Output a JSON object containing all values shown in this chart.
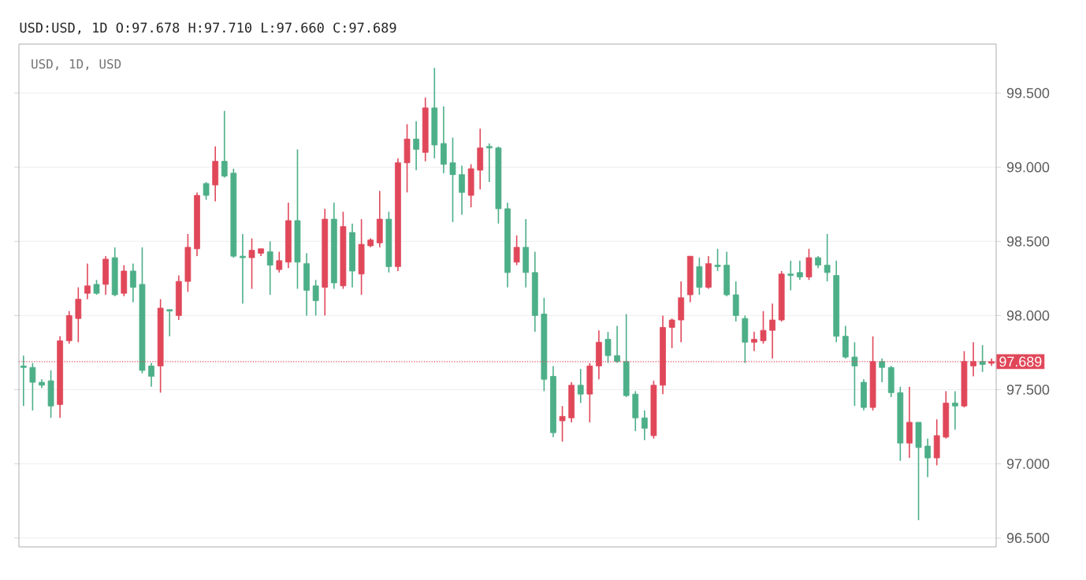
{
  "chart_data": {
    "type": "candlestick",
    "title": "USD:USD, 1D O:97.678 H:97.710 L:97.660 C:97.689",
    "subtitle": "USD, 1D, USD",
    "categories": [
      null,
      null,
      null,
      null,
      null,
      null,
      null,
      null,
      null,
      null,
      null,
      null,
      null,
      null,
      null,
      null,
      null,
      null,
      null,
      null,
      null,
      null,
      null,
      null,
      null,
      null,
      null,
      null,
      null,
      null,
      null,
      null,
      null,
      null,
      null,
      null,
      null,
      null,
      null,
      null,
      null,
      null,
      null,
      null,
      null,
      null,
      null,
      null,
      null,
      null,
      null,
      null,
      null,
      null,
      null,
      null,
      null,
      null,
      null,
      null,
      null,
      null,
      null,
      null,
      null,
      null,
      null,
      null,
      null,
      null,
      null,
      null,
      null,
      null,
      null,
      null,
      null,
      null,
      null,
      null,
      null,
      null,
      null,
      null,
      null,
      null,
      null,
      null,
      null,
      null,
      null,
      null,
      null,
      null,
      null,
      null,
      null,
      null,
      null,
      null,
      null,
      null,
      null,
      null,
      null,
      null,
      null
    ],
    "ohlc": [
      [
        97.66,
        97.73,
        97.39,
        97.65
      ],
      [
        97.65,
        97.68,
        97.36,
        97.55
      ],
      [
        97.55,
        97.57,
        97.51,
        97.53
      ],
      [
        97.56,
        97.63,
        97.31,
        97.39
      ],
      [
        97.4,
        97.86,
        97.31,
        97.83
      ],
      [
        97.83,
        98.03,
        97.81,
        98.0
      ],
      [
        97.98,
        98.19,
        97.82,
        98.11
      ],
      [
        98.15,
        98.35,
        98.11,
        98.2
      ],
      [
        98.21,
        98.24,
        98.14,
        98.15
      ],
      [
        98.21,
        98.4,
        98.14,
        98.38
      ],
      [
        98.39,
        98.46,
        98.13,
        98.14
      ],
      [
        98.15,
        98.34,
        98.13,
        98.3
      ],
      [
        98.3,
        98.35,
        98.09,
        98.19
      ],
      [
        98.21,
        98.46,
        97.61,
        97.63
      ],
      [
        97.66,
        97.68,
        97.52,
        97.59
      ],
      [
        97.66,
        98.11,
        97.48,
        98.05
      ],
      [
        98.04,
        98.04,
        97.86,
        98.03
      ],
      [
        98.0,
        98.27,
        97.97,
        98.23
      ],
      [
        98.23,
        98.55,
        98.16,
        98.46
      ],
      [
        98.45,
        98.83,
        98.4,
        98.81
      ],
      [
        98.89,
        98.9,
        98.78,
        98.81
      ],
      [
        98.88,
        99.14,
        98.77,
        99.04
      ],
      [
        99.04,
        99.38,
        98.93,
        98.94
      ],
      [
        98.96,
        98.99,
        98.39,
        98.4
      ],
      [
        98.4,
        98.55,
        98.08,
        98.39
      ],
      [
        98.39,
        98.52,
        98.18,
        98.44
      ],
      [
        98.42,
        98.45,
        98.4,
        98.45
      ],
      [
        98.43,
        98.5,
        98.14,
        98.34
      ],
      [
        98.31,
        98.43,
        98.29,
        98.37
      ],
      [
        98.36,
        98.76,
        98.32,
        98.64
      ],
      [
        98.64,
        99.12,
        98.18,
        98.36
      ],
      [
        98.35,
        98.42,
        98.0,
        98.17
      ],
      [
        98.2,
        98.24,
        98.0,
        98.1
      ],
      [
        98.19,
        98.72,
        98.0,
        98.65
      ],
      [
        98.65,
        98.76,
        98.18,
        98.22
      ],
      [
        98.2,
        98.7,
        98.18,
        98.6
      ],
      [
        98.56,
        98.62,
        98.19,
        98.3
      ],
      [
        98.28,
        98.65,
        98.14,
        98.48
      ],
      [
        98.47,
        98.52,
        98.46,
        98.51
      ],
      [
        98.49,
        98.84,
        98.46,
        98.65
      ],
      [
        98.65,
        98.7,
        98.29,
        98.33
      ],
      [
        98.33,
        99.06,
        98.3,
        99.03
      ],
      [
        99.03,
        99.29,
        98.83,
        99.19
      ],
      [
        99.19,
        99.31,
        98.98,
        99.12
      ],
      [
        99.1,
        99.47,
        99.04,
        99.4
      ],
      [
        99.4,
        99.67,
        99.06,
        99.15
      ],
      [
        99.16,
        99.41,
        98.96,
        99.02
      ],
      [
        99.03,
        99.2,
        98.63,
        98.95
      ],
      [
        98.95,
        99.01,
        98.68,
        98.83
      ],
      [
        98.81,
        99.02,
        98.73,
        98.99
      ],
      [
        98.98,
        99.26,
        98.85,
        99.13
      ],
      [
        99.14,
        99.16,
        98.9,
        99.13
      ],
      [
        99.13,
        99.14,
        98.62,
        98.72
      ],
      [
        98.72,
        98.76,
        98.19,
        98.29
      ],
      [
        98.36,
        98.54,
        98.34,
        98.46
      ],
      [
        98.46,
        98.65,
        98.19,
        98.29
      ],
      [
        98.29,
        98.43,
        97.89,
        98.0
      ],
      [
        98.01,
        98.12,
        97.49,
        97.57
      ],
      [
        97.59,
        97.66,
        97.18,
        97.21
      ],
      [
        97.29,
        97.39,
        97.15,
        97.32
      ],
      [
        97.31,
        97.55,
        97.28,
        97.53
      ],
      [
        97.53,
        97.64,
        97.41,
        97.47
      ],
      [
        97.47,
        97.68,
        97.28,
        97.66
      ],
      [
        97.66,
        97.9,
        97.57,
        97.82
      ],
      [
        97.84,
        97.89,
        97.68,
        97.73
      ],
      [
        97.73,
        97.93,
        97.68,
        97.69
      ],
      [
        97.69,
        98.01,
        97.45,
        97.46
      ],
      [
        97.47,
        97.49,
        97.22,
        97.31
      ],
      [
        97.31,
        97.36,
        97.16,
        97.24
      ],
      [
        97.19,
        97.56,
        97.17,
        97.53
      ],
      [
        97.53,
        98.0,
        97.47,
        97.92
      ],
      [
        97.92,
        97.98,
        97.78,
        97.97
      ],
      [
        97.97,
        98.23,
        97.82,
        98.12
      ],
      [
        98.14,
        98.4,
        98.09,
        98.4
      ],
      [
        98.33,
        98.39,
        98.14,
        98.19
      ],
      [
        98.19,
        98.4,
        98.18,
        98.35
      ],
      [
        98.34,
        98.45,
        98.3,
        98.33
      ],
      [
        98.34,
        98.43,
        98.13,
        98.14
      ],
      [
        98.14,
        98.23,
        97.96,
        98.0
      ],
      [
        97.98,
        98.0,
        97.68,
        97.82
      ],
      [
        97.82,
        97.89,
        97.76,
        97.84
      ],
      [
        97.83,
        98.03,
        97.81,
        97.9
      ],
      [
        97.9,
        98.08,
        97.71,
        97.97
      ],
      [
        97.97,
        98.3,
        97.96,
        98.28
      ],
      [
        98.28,
        98.37,
        98.17,
        98.27
      ],
      [
        98.29,
        98.37,
        98.24,
        98.26
      ],
      [
        98.26,
        98.45,
        98.24,
        98.39
      ],
      [
        98.39,
        98.4,
        98.32,
        98.34
      ],
      [
        98.34,
        98.55,
        98.23,
        98.29
      ],
      [
        98.27,
        98.37,
        97.82,
        97.86
      ],
      [
        97.86,
        97.93,
        97.71,
        97.72
      ],
      [
        97.72,
        97.82,
        97.39,
        97.66
      ],
      [
        97.55,
        97.57,
        97.36,
        97.38
      ],
      [
        97.38,
        97.86,
        97.36,
        97.69
      ],
      [
        97.69,
        97.71,
        97.55,
        97.65
      ],
      [
        97.65,
        97.66,
        97.45,
        97.48
      ],
      [
        97.48,
        97.52,
        97.02,
        97.14
      ],
      [
        97.14,
        97.52,
        97.04,
        97.28
      ],
      [
        97.28,
        97.28,
        96.62,
        97.11
      ],
      [
        97.12,
        97.17,
        96.91,
        97.04
      ],
      [
        97.04,
        97.3,
        96.99,
        97.19
      ],
      [
        97.18,
        97.49,
        97.17,
        97.41
      ],
      [
        97.41,
        97.49,
        97.23,
        97.39
      ],
      [
        97.39,
        97.76,
        97.38,
        97.69
      ],
      [
        97.66,
        97.82,
        97.59,
        97.69
      ],
      [
        97.69,
        97.8,
        97.62,
        97.67
      ],
      [
        97.678,
        97.71,
        97.66,
        97.689
      ]
    ],
    "colors": [
      "#4caf88",
      "#4caf88",
      "#4caf88",
      "#4caf88",
      "#e0485a",
      "#e0485a",
      "#e0485a",
      "#e0485a",
      "#4caf88",
      "#e0485a",
      "#4caf88",
      "#e0485a",
      "#4caf88",
      "#4caf88",
      "#4caf88",
      "#e0485a",
      "#4caf88",
      "#e0485a",
      "#e0485a",
      "#e0485a",
      "#4caf88",
      "#e0485a",
      "#4caf88",
      "#4caf88",
      "#4caf88",
      "#e0485a",
      "#e0485a",
      "#4caf88",
      "#e0485a",
      "#e0485a",
      "#4caf88",
      "#4caf88",
      "#4caf88",
      "#e0485a",
      "#4caf88",
      "#e0485a",
      "#4caf88",
      "#e0485a",
      "#e0485a",
      "#e0485a",
      "#4caf88",
      "#e0485a",
      "#e0485a",
      "#4caf88",
      "#e0485a",
      "#4caf88",
      "#4caf88",
      "#4caf88",
      "#4caf88",
      "#e0485a",
      "#e0485a",
      "#4caf88",
      "#4caf88",
      "#4caf88",
      "#e0485a",
      "#4caf88",
      "#4caf88",
      "#4caf88",
      "#4caf88",
      "#e0485a",
      "#e0485a",
      "#4caf88",
      "#e0485a",
      "#e0485a",
      "#4caf88",
      "#4caf88",
      "#4caf88",
      "#4caf88",
      "#4caf88",
      "#e0485a",
      "#e0485a",
      "#e0485a",
      "#e0485a",
      "#e0485a",
      "#4caf88",
      "#e0485a",
      "#4caf88",
      "#4caf88",
      "#4caf88",
      "#4caf88",
      "#e0485a",
      "#e0485a",
      "#e0485a",
      "#e0485a",
      "#4caf88",
      "#4caf88",
      "#e0485a",
      "#4caf88",
      "#4caf88",
      "#4caf88",
      "#4caf88",
      "#4caf88",
      "#4caf88",
      "#e0485a",
      "#4caf88",
      "#4caf88",
      "#4caf88",
      "#e0485a",
      "#4caf88",
      "#4caf88",
      "#e0485a",
      "#e0485a",
      "#4caf88",
      "#e0485a",
      "#e0485a",
      "#4caf88",
      "#e0485a"
    ],
    "ylim": [
      96.44,
      99.83
    ],
    "yticks": [
      {
        "value": 96.5,
        "label": "96.500"
      },
      {
        "value": 97.0,
        "label": "97.000"
      },
      {
        "value": 97.5,
        "label": "97.500"
      },
      {
        "value": 98.0,
        "label": "98.000"
      },
      {
        "value": 98.5,
        "label": "98.500"
      },
      {
        "value": 99.0,
        "label": "99.000"
      },
      {
        "value": 99.5,
        "label": "99.500"
      }
    ],
    "ref_lines": [
      {
        "axis": "y",
        "value": 97.689,
        "label": "97.689",
        "color": "#e0485a",
        "line_style": "dotted"
      }
    ],
    "grid": "y",
    "tick_labels": "y"
  }
}
